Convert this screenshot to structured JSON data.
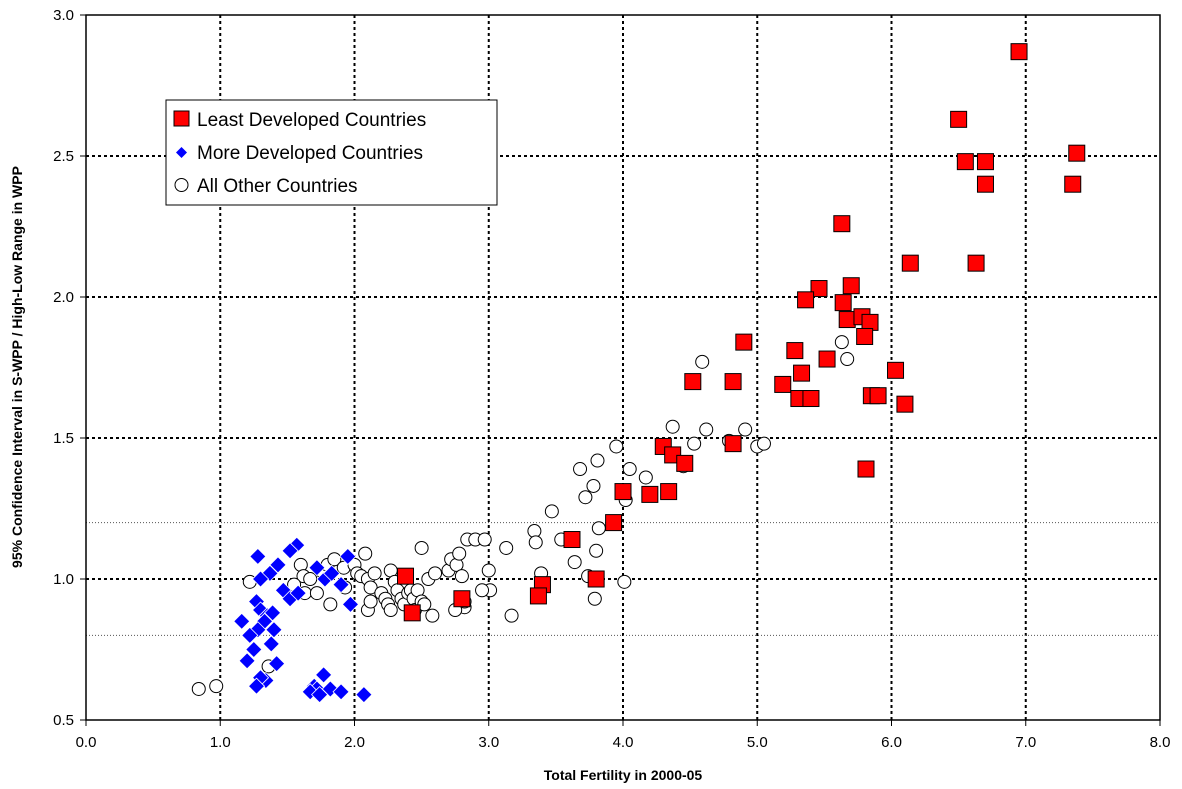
{
  "chart_data": {
    "type": "scatter",
    "title": "",
    "xlabel": "Total Fertility in 2000-05",
    "ylabel": "95% Confidence Interval in S-WPP / High-Low Range in WPP",
    "xlim": [
      0,
      8
    ],
    "ylim": [
      0.5,
      3.0
    ],
    "x_ticks": [
      "0.0",
      "1.0",
      "2.0",
      "3.0",
      "4.0",
      "5.0",
      "6.0",
      "7.0",
      "8.0"
    ],
    "y_ticks": [
      "0.5",
      "1.0",
      "1.5",
      "2.0",
      "2.5",
      "3.0"
    ],
    "reference_lines": [
      0.8,
      1.2
    ],
    "grid": true,
    "legend_position": "upper-left",
    "series": [
      {
        "name": "Least Developed Countries",
        "marker": "square",
        "color": "#FF0000",
        "points": [
          [
            6.95,
            2.87
          ],
          [
            6.5,
            2.63
          ],
          [
            6.55,
            2.48
          ],
          [
            6.7,
            2.48
          ],
          [
            6.7,
            2.4
          ],
          [
            7.35,
            2.4
          ],
          [
            7.38,
            2.51
          ],
          [
            5.63,
            2.26
          ],
          [
            6.14,
            2.12
          ],
          [
            6.63,
            2.12
          ],
          [
            5.46,
            2.03
          ],
          [
            5.7,
            2.04
          ],
          [
            5.36,
            1.99
          ],
          [
            5.64,
            1.98
          ],
          [
            5.67,
            1.92
          ],
          [
            5.78,
            1.93
          ],
          [
            5.84,
            1.91
          ],
          [
            5.8,
            1.86
          ],
          [
            4.9,
            1.84
          ],
          [
            5.28,
            1.81
          ],
          [
            5.52,
            1.78
          ],
          [
            5.33,
            1.73
          ],
          [
            6.03,
            1.74
          ],
          [
            4.52,
            1.7
          ],
          [
            4.82,
            1.7
          ],
          [
            5.19,
            1.69
          ],
          [
            5.31,
            1.64
          ],
          [
            5.4,
            1.64
          ],
          [
            5.85,
            1.65
          ],
          [
            5.9,
            1.65
          ],
          [
            6.1,
            1.62
          ],
          [
            4.3,
            1.47
          ],
          [
            4.82,
            1.48
          ],
          [
            4.37,
            1.44
          ],
          [
            4.46,
            1.41
          ],
          [
            5.81,
            1.39
          ],
          [
            4.0,
            1.31
          ],
          [
            4.34,
            1.31
          ],
          [
            4.2,
            1.3
          ],
          [
            3.93,
            1.2
          ],
          [
            3.62,
            1.14
          ],
          [
            2.38,
            1.01
          ],
          [
            3.8,
            1.0
          ],
          [
            3.4,
            0.98
          ],
          [
            3.37,
            0.94
          ],
          [
            2.8,
            0.93
          ],
          [
            2.43,
            0.88
          ]
        ]
      },
      {
        "name": "More Developed Countries",
        "marker": "diamond",
        "color": "#0000FF",
        "points": [
          [
            1.57,
            1.12
          ],
          [
            1.52,
            1.1
          ],
          [
            1.28,
            1.08
          ],
          [
            1.95,
            1.08
          ],
          [
            1.43,
            1.05
          ],
          [
            1.37,
            1.02
          ],
          [
            1.3,
            1.0
          ],
          [
            1.72,
            1.04
          ],
          [
            1.78,
            1.0
          ],
          [
            1.83,
            1.02
          ],
          [
            1.9,
            0.98
          ],
          [
            1.47,
            0.96
          ],
          [
            1.52,
            0.93
          ],
          [
            1.58,
            0.95
          ],
          [
            1.97,
            0.91
          ],
          [
            1.27,
            0.92
          ],
          [
            1.3,
            0.89
          ],
          [
            1.35,
            0.87
          ],
          [
            1.39,
            0.88
          ],
          [
            1.33,
            0.85
          ],
          [
            1.16,
            0.85
          ],
          [
            1.28,
            0.82
          ],
          [
            1.22,
            0.8
          ],
          [
            1.4,
            0.82
          ],
          [
            1.38,
            0.77
          ],
          [
            1.25,
            0.75
          ],
          [
            1.2,
            0.71
          ],
          [
            1.42,
            0.7
          ],
          [
            1.34,
            0.64
          ],
          [
            1.3,
            0.65
          ],
          [
            1.27,
            0.62
          ],
          [
            1.77,
            0.66
          ],
          [
            1.7,
            0.62
          ],
          [
            1.72,
            0.61
          ],
          [
            1.67,
            0.6
          ],
          [
            1.82,
            0.61
          ],
          [
            1.9,
            0.6
          ],
          [
            2.07,
            0.59
          ],
          [
            1.74,
            0.59
          ]
        ]
      },
      {
        "name": "All Other Countries",
        "marker": "circle",
        "color": "#FFFFFF",
        "points": [
          [
            0.84,
            0.61
          ],
          [
            0.97,
            0.62
          ],
          [
            1.36,
            0.69
          ],
          [
            1.22,
            0.99
          ],
          [
            1.6,
            1.05
          ],
          [
            1.62,
            1.01
          ],
          [
            1.55,
            0.98
          ],
          [
            1.63,
            0.95
          ],
          [
            1.72,
            0.95
          ],
          [
            1.67,
            1.0
          ],
          [
            1.75,
            1.03
          ],
          [
            1.8,
            1.05
          ],
          [
            1.85,
            1.07
          ],
          [
            1.82,
            0.91
          ],
          [
            1.92,
            1.04
          ],
          [
            1.93,
            0.97
          ],
          [
            2.0,
            1.05
          ],
          [
            2.02,
            1.02
          ],
          [
            2.05,
            1.01
          ],
          [
            2.08,
            1.09
          ],
          [
            2.1,
            1.0
          ],
          [
            2.12,
            0.97
          ],
          [
            2.15,
            1.02
          ],
          [
            2.2,
            0.95
          ],
          [
            2.23,
            0.93
          ],
          [
            2.25,
            0.91
          ],
          [
            2.27,
            1.03
          ],
          [
            2.3,
            0.99
          ],
          [
            2.32,
            0.96
          ],
          [
            2.35,
            0.93
          ],
          [
            2.37,
            0.91
          ],
          [
            2.4,
            0.95
          ],
          [
            2.42,
            0.96
          ],
          [
            2.44,
            0.93
          ],
          [
            2.45,
            0.89
          ],
          [
            2.47,
            0.96
          ],
          [
            2.5,
            0.92
          ],
          [
            2.52,
            0.91
          ],
          [
            2.55,
            1.0
          ],
          [
            2.58,
            0.87
          ],
          [
            2.6,
            1.02
          ],
          [
            2.5,
            1.11
          ],
          [
            2.27,
            0.89
          ],
          [
            2.1,
            0.89
          ],
          [
            2.12,
            0.92
          ],
          [
            2.7,
            1.03
          ],
          [
            2.72,
            1.07
          ],
          [
            2.76,
            1.05
          ],
          [
            2.78,
            1.09
          ],
          [
            2.8,
            1.01
          ],
          [
            2.82,
            0.9
          ],
          [
            2.84,
            1.14
          ],
          [
            2.9,
            1.14
          ],
          [
            2.97,
            1.14
          ],
          [
            3.0,
            1.03
          ],
          [
            3.01,
            0.96
          ],
          [
            2.95,
            0.96
          ],
          [
            2.75,
            0.89
          ],
          [
            2.82,
            0.92
          ],
          [
            3.13,
            1.11
          ],
          [
            3.17,
            0.87
          ],
          [
            3.34,
            1.17
          ],
          [
            3.35,
            1.13
          ],
          [
            3.39,
            1.02
          ],
          [
            3.47,
            1.24
          ],
          [
            3.54,
            1.14
          ],
          [
            3.64,
            1.06
          ],
          [
            3.74,
            1.01
          ],
          [
            3.79,
            0.93
          ],
          [
            3.82,
            1.18
          ],
          [
            3.8,
            1.1
          ],
          [
            3.68,
            1.39
          ],
          [
            3.72,
            1.29
          ],
          [
            3.78,
            1.33
          ],
          [
            3.81,
            1.42
          ],
          [
            3.95,
            1.47
          ],
          [
            4.02,
            1.28
          ],
          [
            4.05,
            1.39
          ],
          [
            4.01,
            0.99
          ],
          [
            4.17,
            1.36
          ],
          [
            4.37,
            1.54
          ],
          [
            4.45,
            1.4
          ],
          [
            4.53,
            1.48
          ],
          [
            4.59,
            1.77
          ],
          [
            4.62,
            1.53
          ],
          [
            4.79,
            1.49
          ],
          [
            4.91,
            1.53
          ],
          [
            5.0,
            1.47
          ],
          [
            5.05,
            1.48
          ],
          [
            5.63,
            1.84
          ],
          [
            5.67,
            1.78
          ]
        ]
      }
    ]
  }
}
